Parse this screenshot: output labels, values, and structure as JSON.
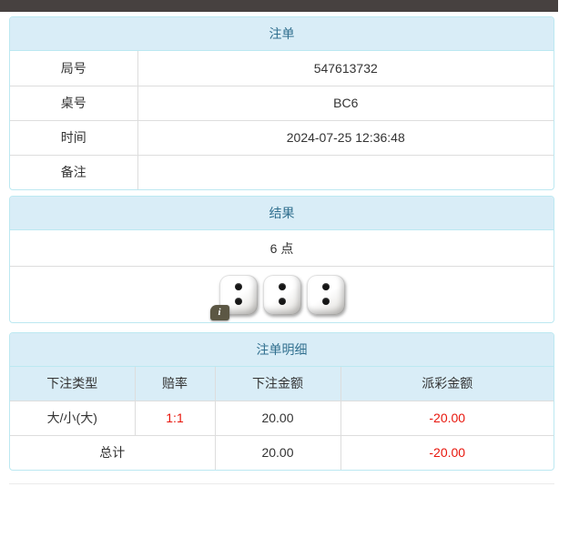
{
  "bet_panel": {
    "title": "注单",
    "rows": [
      {
        "label": "局号",
        "value": "547613732"
      },
      {
        "label": "桌号",
        "value": "BC6"
      },
      {
        "label": "时间",
        "value": "2024-07-25 12:36:48"
      },
      {
        "label": "备注",
        "value": ""
      }
    ]
  },
  "result_panel": {
    "title": "结果",
    "points_text": "6 点",
    "dice": [
      2,
      2,
      2
    ],
    "info_icon": "i"
  },
  "detail_panel": {
    "title": "注单明细",
    "columns": [
      "下注类型",
      "赔率",
      "下注金额",
      "派彩金额"
    ],
    "rows": [
      {
        "bet_type": "大/小(大)",
        "odds": "1:1",
        "bet_amount": "20.00",
        "payout": "-20.00"
      }
    ],
    "total": {
      "label": "总计",
      "bet_amount": "20.00",
      "payout": "-20.00"
    }
  },
  "colors": {
    "top_bar": "#474140",
    "header_bg": "#d9edf7",
    "header_text": "#31708f",
    "panel_border": "#bce8f1",
    "row_border": "#dddddd",
    "text": "#333333",
    "negative": "#e8160c",
    "info_badge": "#5c5744"
  }
}
